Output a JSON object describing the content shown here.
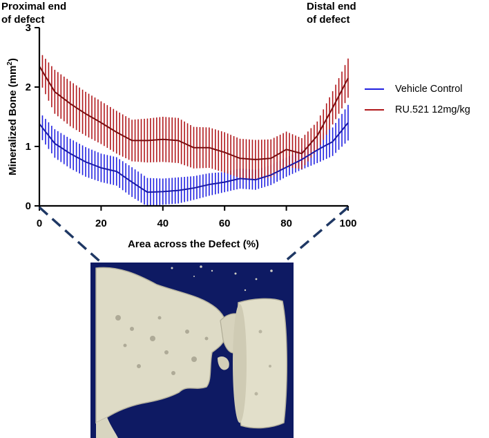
{
  "annotations": {
    "proximal": [
      "Proximal end",
      "of defect"
    ],
    "distal": [
      "Distal end",
      "of defect"
    ]
  },
  "chart_data": {
    "type": "line",
    "xlabel": "Area across the Defect (%)",
    "ylabel": "Mineralized Bone (mm²)",
    "xlim": [
      0,
      100
    ],
    "ylim": [
      0,
      3
    ],
    "xticks": [
      0,
      20,
      40,
      60,
      80,
      100
    ],
    "yticks": [
      0,
      1,
      2,
      3
    ],
    "grid": false,
    "legend_position": "right",
    "error_bars": true,
    "x": [
      0,
      5,
      10,
      15,
      20,
      25,
      30,
      35,
      40,
      45,
      50,
      55,
      60,
      65,
      70,
      75,
      80,
      85,
      90,
      95,
      100
    ],
    "series": [
      {
        "name": "Vehicle Control",
        "color": "#1f1fe0",
        "values": [
          1.38,
          1.05,
          0.88,
          0.74,
          0.64,
          0.58,
          0.4,
          0.23,
          0.24,
          0.26,
          0.3,
          0.36,
          0.4,
          0.46,
          0.44,
          0.52,
          0.65,
          0.78,
          0.94,
          1.08,
          1.4
        ],
        "error": [
          0.2,
          0.24,
          0.25,
          0.25,
          0.24,
          0.24,
          0.25,
          0.24,
          0.22,
          0.22,
          0.2,
          0.19,
          0.17,
          0.17,
          0.17,
          0.17,
          0.16,
          0.17,
          0.22,
          0.24,
          0.3
        ]
      },
      {
        "name": "RU.521 12mg/kg",
        "color": "#b0161a",
        "values": [
          2.35,
          1.92,
          1.72,
          1.55,
          1.4,
          1.24,
          1.1,
          1.1,
          1.12,
          1.1,
          0.98,
          0.98,
          0.9,
          0.8,
          0.78,
          0.8,
          0.95,
          0.88,
          1.18,
          1.65,
          2.15
        ],
        "error": [
          0.25,
          0.37,
          0.38,
          0.37,
          0.36,
          0.36,
          0.35,
          0.37,
          0.38,
          0.38,
          0.35,
          0.34,
          0.34,
          0.33,
          0.33,
          0.32,
          0.3,
          0.26,
          0.24,
          0.28,
          0.33
        ]
      }
    ]
  }
}
